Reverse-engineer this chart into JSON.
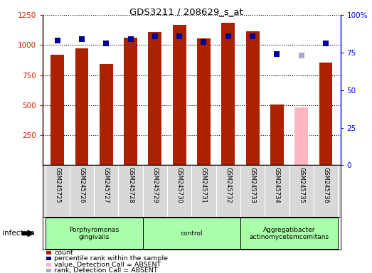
{
  "title": "GDS3211 / 208629_s_at",
  "samples": [
    "GSM245725",
    "GSM245726",
    "GSM245727",
    "GSM245728",
    "GSM245729",
    "GSM245730",
    "GSM245731",
    "GSM245732",
    "GSM245733",
    "GSM245734",
    "GSM245735",
    "GSM245736"
  ],
  "count_values": [
    920,
    970,
    840,
    1060,
    1110,
    1165,
    1055,
    1185,
    1115,
    505,
    480,
    855
  ],
  "rank_values": [
    83,
    84,
    81,
    84,
    86,
    86,
    82,
    86,
    86,
    74,
    73,
    81
  ],
  "count_absent": [
    false,
    false,
    false,
    false,
    false,
    false,
    false,
    false,
    false,
    false,
    true,
    false
  ],
  "rank_absent": [
    false,
    false,
    false,
    false,
    false,
    false,
    false,
    false,
    false,
    false,
    true,
    false
  ],
  "count_color_normal": "#aa2200",
  "count_color_absent": "#ffb6c1",
  "rank_color_normal": "#000099",
  "rank_color_absent": "#aaaacc",
  "ylim_left": [
    0,
    1250
  ],
  "ylim_right": [
    0,
    100
  ],
  "yticks_left": [
    250,
    500,
    750,
    1000,
    1250
  ],
  "yticks_right": [
    0,
    25,
    50,
    75,
    100
  ],
  "groups": [
    {
      "label": "Porphyromonas\ngingivalis",
      "start": 0,
      "end": 3,
      "color": "#aaffaa"
    },
    {
      "label": "control",
      "start": 4,
      "end": 7,
      "color": "#aaffaa"
    },
    {
      "label": "Aggregatibacter\nactinomycetemcomitans",
      "start": 8,
      "end": 11,
      "color": "#aaffaa"
    }
  ],
  "infection_label": "infection",
  "legend_items": [
    {
      "label": "count",
      "color": "#aa2200"
    },
    {
      "label": "percentile rank within the sample",
      "color": "#000099"
    },
    {
      "label": "value, Detection Call = ABSENT",
      "color": "#ffb6c1"
    },
    {
      "label": "rank, Detection Call = ABSENT",
      "color": "#aaaacc"
    }
  ],
  "bar_width": 0.55,
  "rank_marker_size": 6
}
